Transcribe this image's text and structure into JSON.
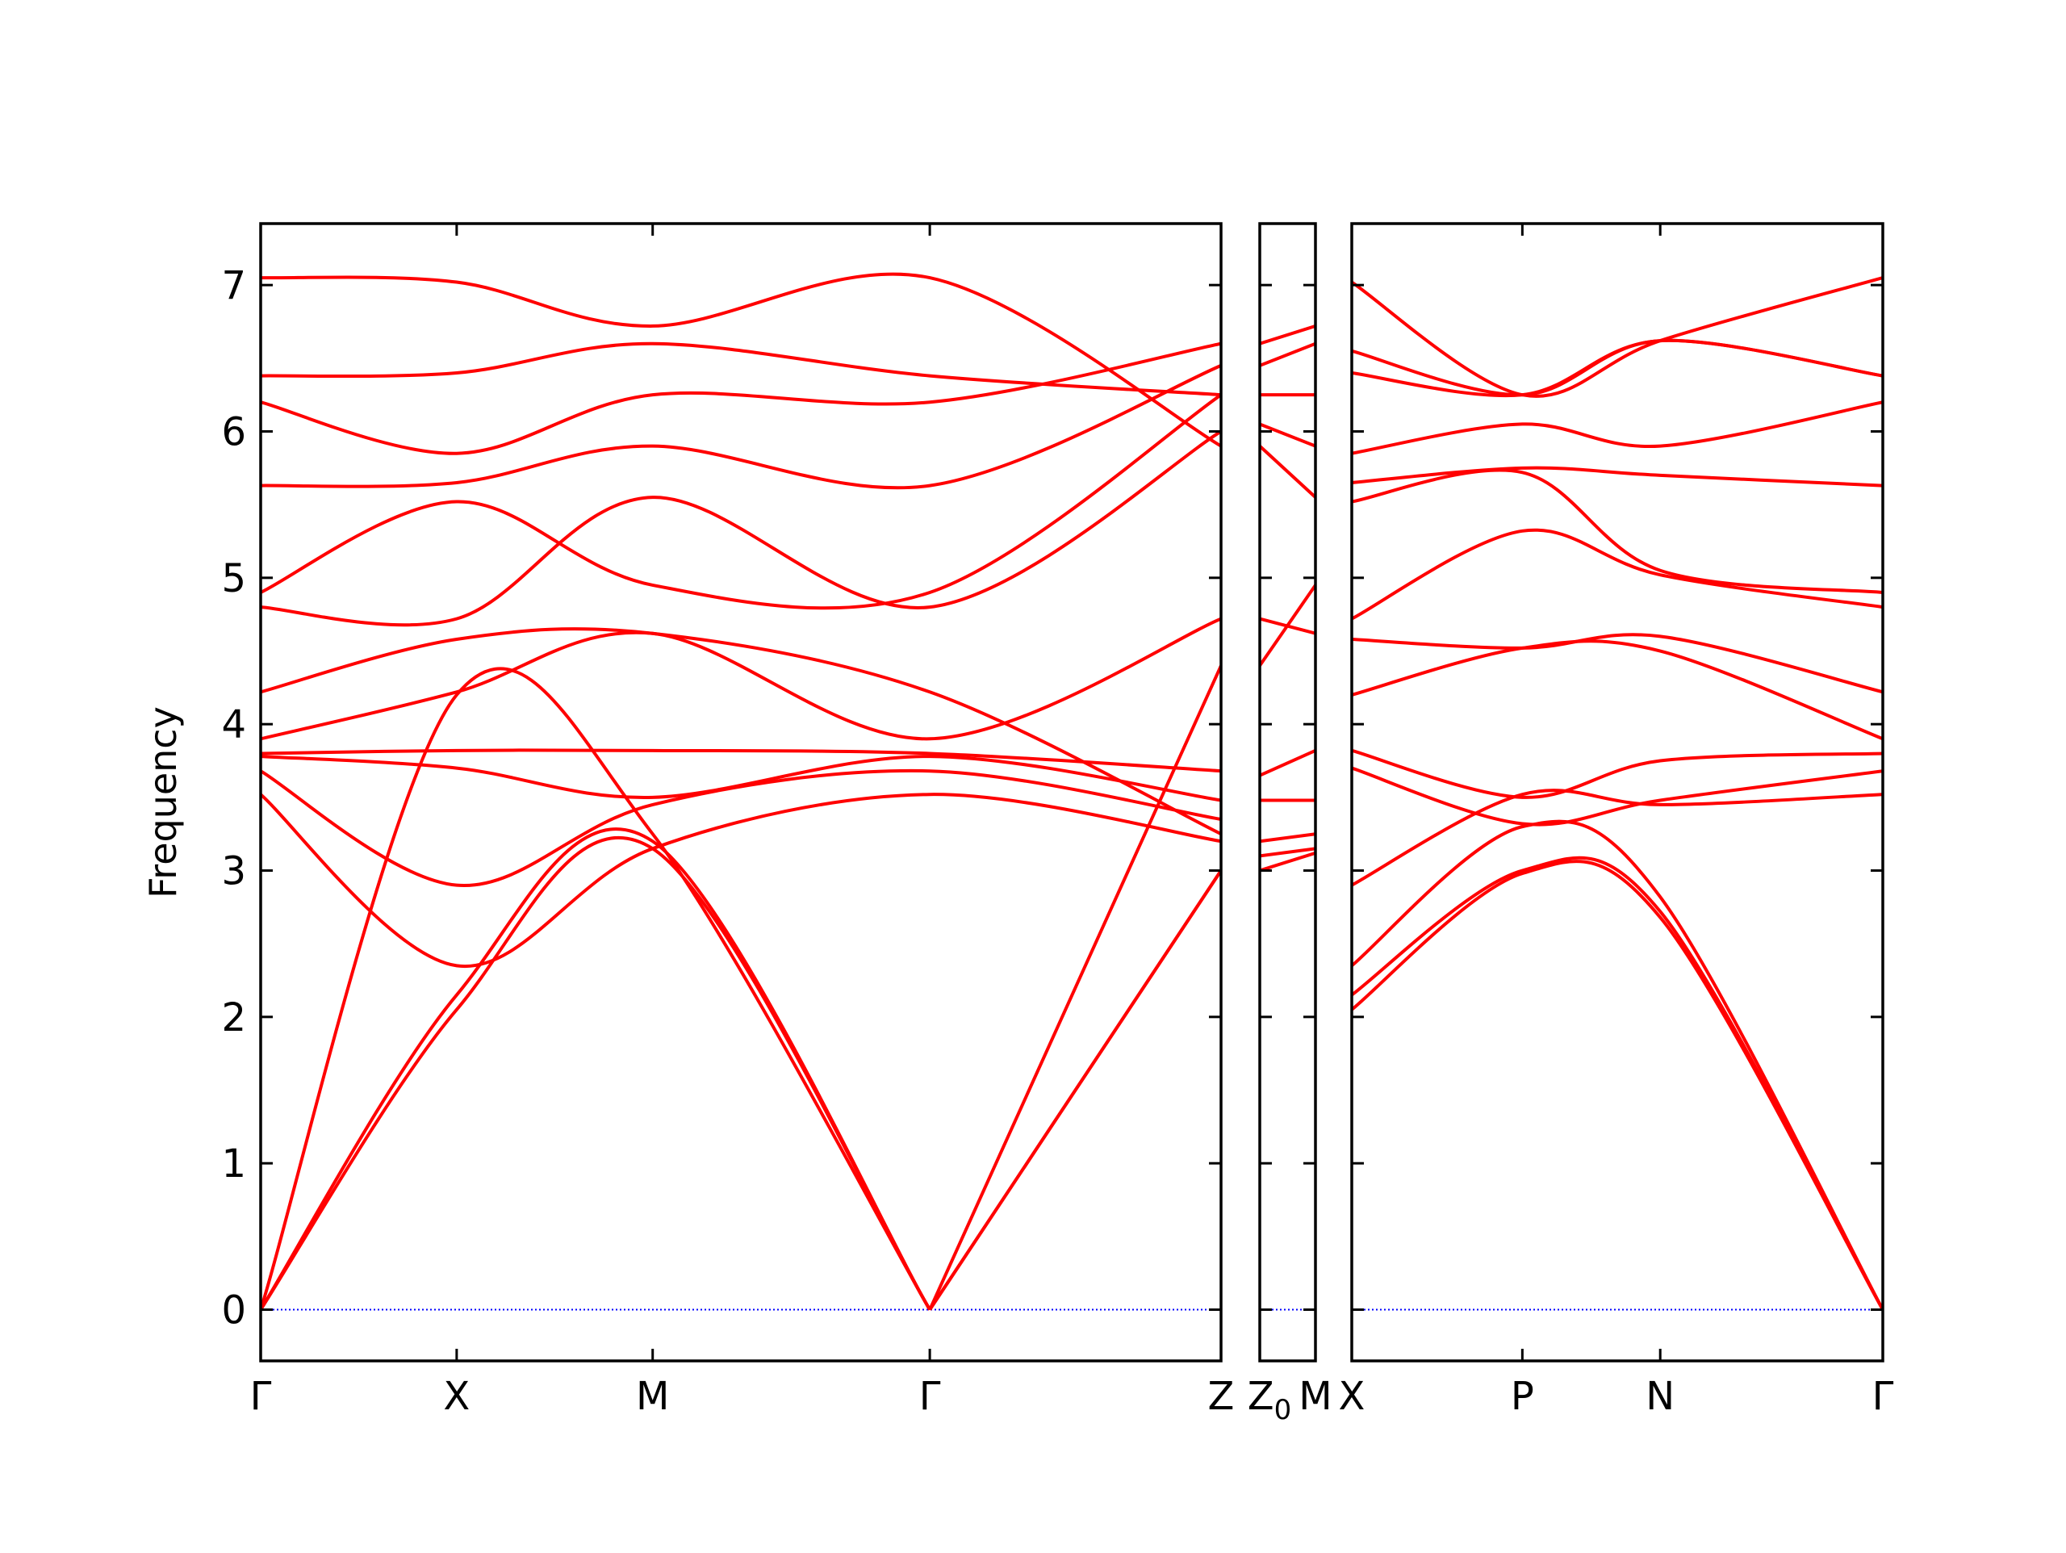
{
  "chart_data": {
    "type": "line",
    "title": "",
    "ylabel": "Frequency",
    "xlabel": "",
    "ylim": [
      -0.35,
      7.42
    ],
    "yticks": [
      0,
      1,
      2,
      3,
      4,
      5,
      6,
      7
    ],
    "grid": false,
    "legend": "none",
    "colors": {
      "bands": "#ff0000",
      "zero_line": "#0000ff",
      "axes": "#000000"
    },
    "panels": [
      {
        "path": "Γ-X-M-Γ-Z",
        "ticks": [
          {
            "label": "Γ",
            "x": 0
          },
          {
            "label": "X",
            "x": 1.0
          },
          {
            "label": "M",
            "x": 2.0
          },
          {
            "label": "Γ",
            "x": 3.414
          },
          {
            "label": "Z",
            "x": 4.9
          }
        ],
        "xlim": [
          0,
          4.9
        ],
        "series": [
          {
            "x": [
              0,
              1.0,
              2.0,
              3.414,
              4.9
            ],
            "values": [
              0,
              2.05,
              3.15,
              0,
              3.0
            ]
          },
          {
            "x": [
              0,
              1.0,
              2.0,
              3.414,
              4.9
            ],
            "values": [
              0,
              2.15,
              3.2,
              0,
              3.0
            ]
          },
          {
            "x": [
              0,
              1.0,
              2.0,
              3.414,
              4.9
            ],
            "values": [
              0,
              4.2,
              3.25,
              0,
              4.4
            ]
          },
          {
            "x": [
              0,
              1.0,
              2.0,
              3.414,
              4.9
            ],
            "values": [
              3.52,
              2.35,
              3.15,
              3.52,
              3.2
            ]
          },
          {
            "x": [
              0,
              1.0,
              2.0,
              3.414,
              4.9
            ],
            "values": [
              3.68,
              2.9,
              3.45,
              3.68,
              3.35
            ]
          },
          {
            "x": [
              0,
              1.0,
              2.0,
              3.414,
              4.9
            ],
            "values": [
              3.78,
              3.7,
              3.5,
              3.78,
              3.48
            ]
          },
          {
            "x": [
              0,
              1.0,
              2.0,
              3.414,
              4.9
            ],
            "values": [
              3.8,
              3.82,
              3.82,
              3.8,
              3.68
            ]
          },
          {
            "x": [
              0,
              1.0,
              2.0,
              3.414,
              4.9
            ],
            "values": [
              3.9,
              4.22,
              4.62,
              3.9,
              4.72
            ]
          },
          {
            "x": [
              0,
              1.0,
              2.0,
              3.414,
              4.9
            ],
            "values": [
              4.22,
              4.58,
              4.62,
              4.22,
              3.25
            ]
          },
          {
            "x": [
              0,
              1.0,
              2.0,
              3.414,
              4.9
            ],
            "values": [
              4.8,
              4.72,
              5.55,
              4.8,
              6.0
            ]
          },
          {
            "x": [
              0,
              1.0,
              2.0,
              3.414,
              4.9
            ],
            "values": [
              4.9,
              5.52,
              4.95,
              4.9,
              6.25
            ]
          },
          {
            "x": [
              0,
              1.0,
              2.0,
              3.414,
              4.9
            ],
            "values": [
              5.63,
              5.65,
              5.9,
              5.63,
              6.45
            ]
          },
          {
            "x": [
              0,
              1.0,
              2.0,
              3.414,
              4.9
            ],
            "values": [
              6.2,
              5.85,
              6.25,
              6.2,
              6.6
            ]
          },
          {
            "x": [
              0,
              1.0,
              2.0,
              3.414,
              4.9
            ],
            "values": [
              6.38,
              6.4,
              6.6,
              6.38,
              6.25
            ]
          },
          {
            "x": [
              0,
              1.0,
              2.0,
              3.414,
              4.9
            ],
            "values": [
              7.05,
              7.02,
              6.72,
              7.05,
              5.9
            ]
          }
        ]
      },
      {
        "path": "Z0-M",
        "ticks": [
          {
            "label": "Z",
            "sub": "0",
            "x": 0
          },
          {
            "label": "M",
            "x": 1.0
          }
        ],
        "xlim": [
          0,
          1.0
        ],
        "series": [
          {
            "x": [
              0,
              1.0
            ],
            "values": [
              3.0,
              3.12
            ]
          },
          {
            "x": [
              0,
              1.0
            ],
            "values": [
              3.1,
              3.15
            ]
          },
          {
            "x": [
              0,
              1.0
            ],
            "values": [
              3.2,
              3.25
            ]
          },
          {
            "x": [
              0,
              1.0
            ],
            "values": [
              3.48,
              3.48
            ]
          },
          {
            "x": [
              0,
              1.0
            ],
            "values": [
              3.65,
              3.82
            ]
          },
          {
            "x": [
              0,
              1.0
            ],
            "values": [
              4.4,
              4.95
            ]
          },
          {
            "x": [
              0,
              1.0
            ],
            "values": [
              4.72,
              4.62
            ]
          },
          {
            "x": [
              0,
              1.0
            ],
            "values": [
              5.9,
              5.55
            ]
          },
          {
            "x": [
              0,
              1.0
            ],
            "values": [
              6.05,
              5.9
            ]
          },
          {
            "x": [
              0,
              1.0
            ],
            "values": [
              6.25,
              6.25
            ]
          },
          {
            "x": [
              0,
              1.0
            ],
            "values": [
              6.45,
              6.6
            ]
          },
          {
            "x": [
              0,
              1.0
            ],
            "values": [
              6.6,
              6.72
            ]
          }
        ]
      },
      {
        "path": "X-P-N-Γ",
        "ticks": [
          {
            "label": "X",
            "x": 0
          },
          {
            "label": "P",
            "x": 0.866
          },
          {
            "label": "N",
            "x": 1.566
          },
          {
            "label": "Γ",
            "x": 2.696
          }
        ],
        "xlim": [
          0,
          2.696
        ],
        "series": [
          {
            "x": [
              0,
              0.866,
              1.566,
              2.696
            ],
            "values": [
              2.05,
              2.98,
              2.68,
              0
            ]
          },
          {
            "x": [
              0,
              0.866,
              1.566,
              2.696
            ],
            "values": [
              2.15,
              3.0,
              2.72,
              0
            ]
          },
          {
            "x": [
              0,
              0.866,
              1.566,
              2.696
            ],
            "values": [
              2.35,
              3.3,
              2.82,
              0
            ]
          },
          {
            "x": [
              0,
              0.866,
              1.566,
              2.696
            ],
            "values": [
              2.9,
              3.52,
              3.45,
              3.52
            ]
          },
          {
            "x": [
              0,
              0.866,
              1.566,
              2.696
            ],
            "values": [
              3.7,
              3.32,
              3.48,
              3.68
            ]
          },
          {
            "x": [
              0,
              0.866,
              1.566,
              2.696
            ],
            "values": [
              3.82,
              3.5,
              3.75,
              3.8
            ]
          },
          {
            "x": [
              0,
              0.866,
              1.566,
              2.696
            ],
            "values": [
              4.2,
              4.52,
              4.5,
              3.9
            ]
          },
          {
            "x": [
              0,
              0.866,
              1.566,
              2.696
            ],
            "values": [
              4.58,
              4.52,
              4.6,
              4.22
            ]
          },
          {
            "x": [
              0,
              0.866,
              1.566,
              2.696
            ],
            "values": [
              4.72,
              5.32,
              5.02,
              4.8
            ]
          },
          {
            "x": [
              0,
              0.866,
              1.566,
              2.696
            ],
            "values": [
              5.52,
              5.72,
              5.05,
              4.9
            ]
          },
          {
            "x": [
              0,
              0.866,
              1.566,
              2.696
            ],
            "values": [
              5.65,
              5.75,
              5.7,
              5.63
            ]
          },
          {
            "x": [
              0,
              0.866,
              1.566,
              2.696
            ],
            "values": [
              5.85,
              6.05,
              5.9,
              6.2
            ]
          },
          {
            "x": [
              0,
              0.866,
              1.566,
              2.696
            ],
            "values": [
              6.4,
              6.25,
              6.62,
              6.38
            ]
          },
          {
            "x": [
              0,
              0.866,
              1.566,
              2.696
            ],
            "values": [
              6.55,
              6.25,
              6.62,
              6.38
            ]
          },
          {
            "x": [
              0,
              0.866,
              1.566,
              2.696
            ],
            "values": [
              7.02,
              6.25,
              6.62,
              7.05
            ]
          }
        ]
      }
    ]
  }
}
